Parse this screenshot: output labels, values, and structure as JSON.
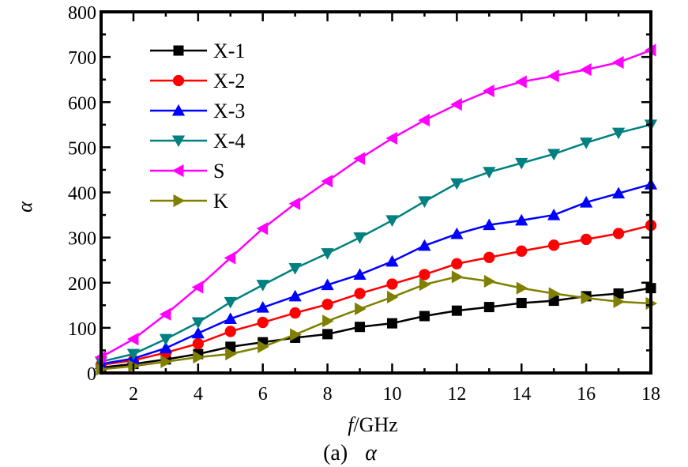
{
  "chart_data": {
    "type": "line",
    "xlabel_italic": "f",
    "xlabel_rest": "/GHz",
    "ylabel": "α",
    "caption_prefix": "(a)",
    "caption_symbol": "α",
    "xlim": [
      1,
      18
    ],
    "ylim": [
      0,
      800
    ],
    "xticks": [
      2,
      4,
      6,
      8,
      10,
      12,
      14,
      16,
      18
    ],
    "yticks": [
      0,
      100,
      200,
      300,
      400,
      500,
      600,
      700,
      800
    ],
    "grid": false,
    "legend_position": "top-left",
    "x": [
      1,
      2,
      3,
      4,
      5,
      6,
      7,
      8,
      9,
      10,
      11,
      12,
      13,
      14,
      15,
      16,
      17,
      18
    ],
    "series": [
      {
        "name": "X-1",
        "color": "#000000",
        "marker": "square",
        "values": [
          12,
          20,
          30,
          42,
          58,
          68,
          78,
          86,
          102,
          110,
          126,
          138,
          146,
          155,
          160,
          170,
          176,
          188
        ]
      },
      {
        "name": "X-2",
        "color": "#ff0000",
        "marker": "circle",
        "values": [
          18,
          28,
          45,
          65,
          92,
          112,
          133,
          152,
          176,
          197,
          218,
          242,
          256,
          270,
          283,
          296,
          309,
          327
        ]
      },
      {
        "name": "X-3",
        "color": "#0000ff",
        "marker": "triangle-up",
        "values": [
          20,
          32,
          55,
          88,
          120,
          145,
          170,
          195,
          218,
          247,
          282,
          308,
          328,
          338,
          350,
          378,
          398,
          418
        ]
      },
      {
        "name": "X-4",
        "color": "#008080",
        "marker": "triangle-down",
        "values": [
          25,
          42,
          75,
          112,
          157,
          195,
          232,
          265,
          300,
          338,
          380,
          420,
          445,
          465,
          485,
          510,
          532,
          550
        ]
      },
      {
        "name": "S",
        "color": "#ff00ff",
        "marker": "triangle-left",
        "values": [
          35,
          75,
          130,
          190,
          255,
          320,
          375,
          425,
          475,
          520,
          560,
          595,
          625,
          645,
          658,
          672,
          688,
          715
        ]
      },
      {
        "name": "K",
        "color": "#808000",
        "marker": "triangle-right",
        "values": [
          8,
          15,
          25,
          35,
          42,
          58,
          85,
          115,
          142,
          168,
          196,
          213,
          203,
          188,
          176,
          166,
          158,
          154
        ]
      }
    ]
  }
}
